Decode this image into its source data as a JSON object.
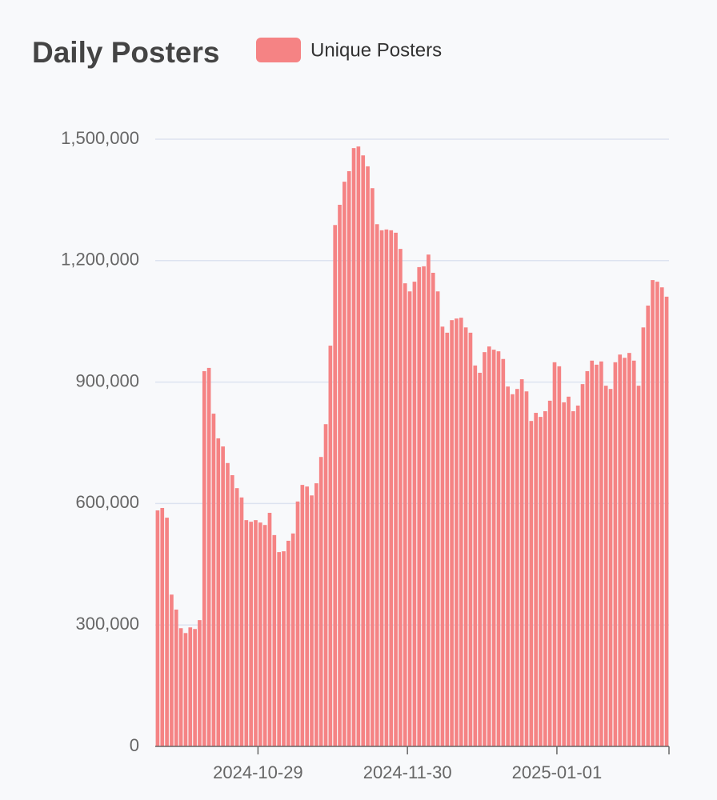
{
  "chart_data": {
    "type": "bar",
    "title": "Daily Posters",
    "series": [
      {
        "name": "Unique Posters",
        "color": "#f58384",
        "values": [
          583000,
          589000,
          565000,
          375000,
          338000,
          292000,
          280000,
          294000,
          290000,
          312000,
          927000,
          935000,
          822000,
          761000,
          741000,
          700000,
          670000,
          638000,
          615000,
          559000,
          555000,
          559000,
          553000,
          547000,
          577000,
          522000,
          480000,
          482000,
          508000,
          526000,
          605000,
          646000,
          642000,
          620000,
          650000,
          715000,
          796000,
          990000,
          1288000,
          1338000,
          1395000,
          1421000,
          1478000,
          1482000,
          1460000,
          1433000,
          1379000,
          1290000,
          1275000,
          1277000,
          1275000,
          1269000,
          1229000,
          1144000,
          1124000,
          1148000,
          1184000,
          1186000,
          1215000,
          1170000,
          1124000,
          1037000,
          1022000,
          1053000,
          1057000,
          1059000,
          1035000,
          1022000,
          941000,
          923000,
          974000,
          988000,
          980000,
          976000,
          957000,
          889000,
          870000,
          883000,
          907000,
          877000,
          804000,
          824000,
          814000,
          828000,
          854000,
          949000,
          939000,
          850000,
          864000,
          828000,
          842000,
          895000,
          927000,
          953000,
          943000,
          951000,
          891000,
          883000,
          949000,
          968000,
          960000,
          972000,
          953000,
          891000,
          1035000,
          1089000,
          1152000,
          1148000,
          1134000,
          1111000
        ]
      }
    ],
    "categories": [
      null,
      null,
      null,
      null,
      null,
      null,
      null,
      null,
      null,
      null,
      null,
      null,
      null,
      null,
      null,
      null,
      null,
      null,
      null,
      null,
      null,
      null,
      "2024-10-29",
      null,
      null,
      null,
      null,
      null,
      null,
      null,
      null,
      null,
      null,
      null,
      null,
      null,
      null,
      null,
      null,
      null,
      null,
      null,
      null,
      null,
      null,
      null,
      null,
      null,
      null,
      null,
      null,
      null,
      null,
      null,
      "2024-11-30",
      null,
      null,
      null,
      null,
      null,
      null,
      null,
      null,
      null,
      null,
      null,
      null,
      null,
      null,
      null,
      null,
      null,
      null,
      null,
      null,
      null,
      null,
      null,
      null,
      null,
      null,
      null,
      null,
      null,
      null,
      null,
      "2025-01-01",
      null,
      null,
      null,
      null,
      null,
      null,
      null,
      null,
      null,
      null,
      null,
      null,
      null,
      null,
      null,
      null,
      null,
      null,
      null,
      null,
      null,
      null,
      null
    ],
    "ylim": [
      0,
      1500000
    ],
    "yticks": [
      0,
      {
        "value": 300000,
        "label": "300,000"
      },
      {
        "value": 600000,
        "label": "600,000"
      },
      {
        "value": 900000,
        "label": "900,000"
      },
      {
        "value": 1200000,
        "label": "1,200,000"
      },
      {
        "value": 1500000,
        "label": "1,500,000"
      }
    ],
    "grid": true
  }
}
